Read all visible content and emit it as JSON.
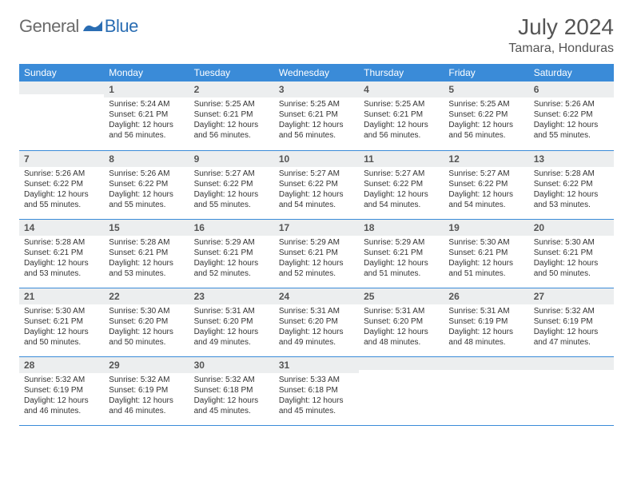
{
  "logo": {
    "general": "General",
    "blue": "Blue"
  },
  "title": "July 2024",
  "location": "Tamara, Honduras",
  "colors": {
    "header_bg": "#3a8bd8",
    "header_fg": "#ffffff",
    "daynum_bg": "#eceeef",
    "daynum_fg": "#555555",
    "text": "#333333",
    "rule": "#3a8bd8",
    "logo_gray": "#6b6b6b",
    "logo_blue": "#2a6db3",
    "page_bg": "#ffffff"
  },
  "fonts": {
    "title_size_pt": 21,
    "location_size_pt": 12,
    "header_size_pt": 9,
    "daynum_size_pt": 9,
    "body_size_pt": 7.5
  },
  "weekdays": [
    "Sunday",
    "Monday",
    "Tuesday",
    "Wednesday",
    "Thursday",
    "Friday",
    "Saturday"
  ],
  "weeks": [
    [
      {
        "n": "",
        "sr": "",
        "ss": "",
        "dl": ""
      },
      {
        "n": "1",
        "sr": "Sunrise: 5:24 AM",
        "ss": "Sunset: 6:21 PM",
        "dl": "Daylight: 12 hours and 56 minutes."
      },
      {
        "n": "2",
        "sr": "Sunrise: 5:25 AM",
        "ss": "Sunset: 6:21 PM",
        "dl": "Daylight: 12 hours and 56 minutes."
      },
      {
        "n": "3",
        "sr": "Sunrise: 5:25 AM",
        "ss": "Sunset: 6:21 PM",
        "dl": "Daylight: 12 hours and 56 minutes."
      },
      {
        "n": "4",
        "sr": "Sunrise: 5:25 AM",
        "ss": "Sunset: 6:21 PM",
        "dl": "Daylight: 12 hours and 56 minutes."
      },
      {
        "n": "5",
        "sr": "Sunrise: 5:25 AM",
        "ss": "Sunset: 6:22 PM",
        "dl": "Daylight: 12 hours and 56 minutes."
      },
      {
        "n": "6",
        "sr": "Sunrise: 5:26 AM",
        "ss": "Sunset: 6:22 PM",
        "dl": "Daylight: 12 hours and 55 minutes."
      }
    ],
    [
      {
        "n": "7",
        "sr": "Sunrise: 5:26 AM",
        "ss": "Sunset: 6:22 PM",
        "dl": "Daylight: 12 hours and 55 minutes."
      },
      {
        "n": "8",
        "sr": "Sunrise: 5:26 AM",
        "ss": "Sunset: 6:22 PM",
        "dl": "Daylight: 12 hours and 55 minutes."
      },
      {
        "n": "9",
        "sr": "Sunrise: 5:27 AM",
        "ss": "Sunset: 6:22 PM",
        "dl": "Daylight: 12 hours and 55 minutes."
      },
      {
        "n": "10",
        "sr": "Sunrise: 5:27 AM",
        "ss": "Sunset: 6:22 PM",
        "dl": "Daylight: 12 hours and 54 minutes."
      },
      {
        "n": "11",
        "sr": "Sunrise: 5:27 AM",
        "ss": "Sunset: 6:22 PM",
        "dl": "Daylight: 12 hours and 54 minutes."
      },
      {
        "n": "12",
        "sr": "Sunrise: 5:27 AM",
        "ss": "Sunset: 6:22 PM",
        "dl": "Daylight: 12 hours and 54 minutes."
      },
      {
        "n": "13",
        "sr": "Sunrise: 5:28 AM",
        "ss": "Sunset: 6:22 PM",
        "dl": "Daylight: 12 hours and 53 minutes."
      }
    ],
    [
      {
        "n": "14",
        "sr": "Sunrise: 5:28 AM",
        "ss": "Sunset: 6:21 PM",
        "dl": "Daylight: 12 hours and 53 minutes."
      },
      {
        "n": "15",
        "sr": "Sunrise: 5:28 AM",
        "ss": "Sunset: 6:21 PM",
        "dl": "Daylight: 12 hours and 53 minutes."
      },
      {
        "n": "16",
        "sr": "Sunrise: 5:29 AM",
        "ss": "Sunset: 6:21 PM",
        "dl": "Daylight: 12 hours and 52 minutes."
      },
      {
        "n": "17",
        "sr": "Sunrise: 5:29 AM",
        "ss": "Sunset: 6:21 PM",
        "dl": "Daylight: 12 hours and 52 minutes."
      },
      {
        "n": "18",
        "sr": "Sunrise: 5:29 AM",
        "ss": "Sunset: 6:21 PM",
        "dl": "Daylight: 12 hours and 51 minutes."
      },
      {
        "n": "19",
        "sr": "Sunrise: 5:30 AM",
        "ss": "Sunset: 6:21 PM",
        "dl": "Daylight: 12 hours and 51 minutes."
      },
      {
        "n": "20",
        "sr": "Sunrise: 5:30 AM",
        "ss": "Sunset: 6:21 PM",
        "dl": "Daylight: 12 hours and 50 minutes."
      }
    ],
    [
      {
        "n": "21",
        "sr": "Sunrise: 5:30 AM",
        "ss": "Sunset: 6:21 PM",
        "dl": "Daylight: 12 hours and 50 minutes."
      },
      {
        "n": "22",
        "sr": "Sunrise: 5:30 AM",
        "ss": "Sunset: 6:20 PM",
        "dl": "Daylight: 12 hours and 50 minutes."
      },
      {
        "n": "23",
        "sr": "Sunrise: 5:31 AM",
        "ss": "Sunset: 6:20 PM",
        "dl": "Daylight: 12 hours and 49 minutes."
      },
      {
        "n": "24",
        "sr": "Sunrise: 5:31 AM",
        "ss": "Sunset: 6:20 PM",
        "dl": "Daylight: 12 hours and 49 minutes."
      },
      {
        "n": "25",
        "sr": "Sunrise: 5:31 AM",
        "ss": "Sunset: 6:20 PM",
        "dl": "Daylight: 12 hours and 48 minutes."
      },
      {
        "n": "26",
        "sr": "Sunrise: 5:31 AM",
        "ss": "Sunset: 6:19 PM",
        "dl": "Daylight: 12 hours and 48 minutes."
      },
      {
        "n": "27",
        "sr": "Sunrise: 5:32 AM",
        "ss": "Sunset: 6:19 PM",
        "dl": "Daylight: 12 hours and 47 minutes."
      }
    ],
    [
      {
        "n": "28",
        "sr": "Sunrise: 5:32 AM",
        "ss": "Sunset: 6:19 PM",
        "dl": "Daylight: 12 hours and 46 minutes."
      },
      {
        "n": "29",
        "sr": "Sunrise: 5:32 AM",
        "ss": "Sunset: 6:19 PM",
        "dl": "Daylight: 12 hours and 46 minutes."
      },
      {
        "n": "30",
        "sr": "Sunrise: 5:32 AM",
        "ss": "Sunset: 6:18 PM",
        "dl": "Daylight: 12 hours and 45 minutes."
      },
      {
        "n": "31",
        "sr": "Sunrise: 5:33 AM",
        "ss": "Sunset: 6:18 PM",
        "dl": "Daylight: 12 hours and 45 minutes."
      },
      {
        "n": "",
        "sr": "",
        "ss": "",
        "dl": ""
      },
      {
        "n": "",
        "sr": "",
        "ss": "",
        "dl": ""
      },
      {
        "n": "",
        "sr": "",
        "ss": "",
        "dl": ""
      }
    ]
  ]
}
